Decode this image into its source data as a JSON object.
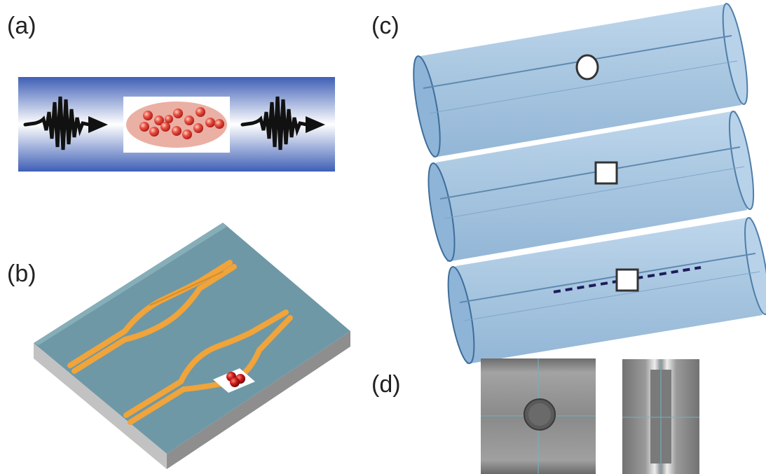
{
  "panels": {
    "a": {
      "label": "(a)"
    },
    "b": {
      "label": "(b)"
    },
    "c": {
      "label": "(c)"
    },
    "d": {
      "label": "(d)"
    }
  },
  "colors": {
    "waveguide_blue": "#3c5fb4",
    "arrow_black": "#111111",
    "particle_red": "#d83030",
    "particle_cloud": "#eab0a4",
    "chip_top": "#6f9aa6",
    "chip_side": "#a8a8a8",
    "chip_waveguide": "#f2a640",
    "fiber_fill": "#9fc0de",
    "fiber_edge": "#4f7ea8",
    "micrograph_gray": "#8c8c8c"
  }
}
